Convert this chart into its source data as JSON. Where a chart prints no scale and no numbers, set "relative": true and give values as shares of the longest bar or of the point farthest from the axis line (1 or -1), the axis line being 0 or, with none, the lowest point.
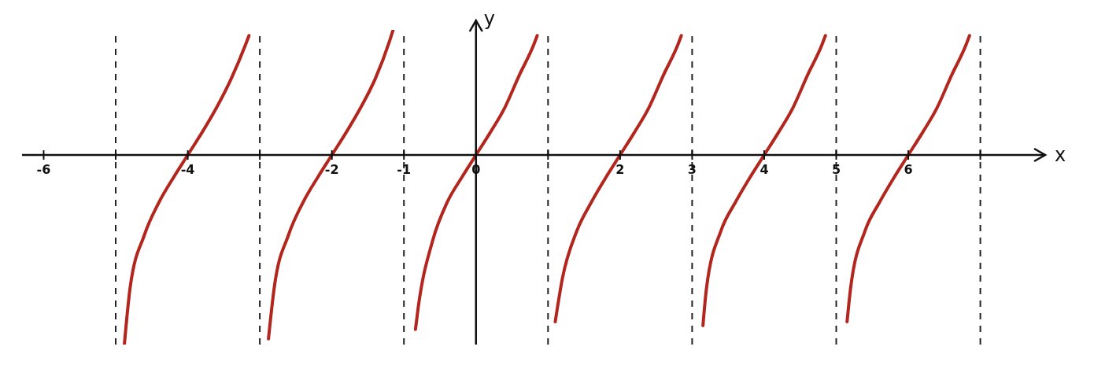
{
  "chart_data": {
    "type": "line",
    "relative": true,
    "xlabel": "x",
    "ylabel": "y",
    "xlim": [
      -6.3,
      7.9
    ],
    "xticks": [
      {
        "value": -6,
        "label": "-6"
      },
      {
        "value": -5,
        "label": null
      },
      {
        "value": -4,
        "label": "-4"
      },
      {
        "value": -3,
        "label": null
      },
      {
        "value": -2,
        "label": "-2"
      },
      {
        "value": -1,
        "label": "-1"
      },
      {
        "value": 0,
        "label": "0"
      },
      {
        "value": 1,
        "label": null
      },
      {
        "value": 2,
        "label": "2"
      },
      {
        "value": 3,
        "label": "3"
      },
      {
        "value": 4,
        "label": "4"
      },
      {
        "value": 5,
        "label": "5"
      },
      {
        "value": 6,
        "label": "6"
      },
      {
        "value": 7,
        "label": null
      }
    ],
    "grid": false,
    "marker": "none",
    "line_style": "solid",
    "series": [
      {
        "color": "#b3261e",
        "x": [
          -4.88,
          -4.8,
          -4.6,
          -4.4,
          -4.2,
          -4,
          -3.8,
          -3.6,
          -3.4,
          -3.2,
          -3.15
        ],
        "values": [
          -1,
          -0.7,
          -0.42,
          -0.25,
          -0.12,
          0,
          0.12,
          0.25,
          0.4,
          0.58,
          0.63
        ]
      },
      {
        "color": "#b3261e",
        "x": [
          -2.88,
          -2.8,
          -2.6,
          -2.4,
          -2.2,
          -2,
          -1.8,
          -1.6,
          -1.4,
          -1.2,
          -1.15
        ],
        "values": [
          -0.97,
          -0.7,
          -0.42,
          -0.25,
          -0.12,
          0,
          0.12,
          0.25,
          0.4,
          0.6,
          0.66
        ]
      },
      {
        "color": "#b3261e",
        "x": [
          -0.84,
          -0.8,
          -0.6,
          -0.4,
          -0.2,
          0,
          0.2,
          0.4,
          0.6,
          0.8,
          0.85
        ],
        "values": [
          -0.92,
          -0.8,
          -0.45,
          -0.25,
          -0.12,
          0,
          0.12,
          0.25,
          0.42,
          0.58,
          0.63
        ]
      },
      {
        "color": "#b3261e",
        "x": [
          1.1,
          1.2,
          1.4,
          1.6,
          1.8,
          2,
          2.2,
          2.4,
          2.6,
          2.8,
          2.85
        ],
        "values": [
          -0.88,
          -0.65,
          -0.4,
          -0.25,
          -0.12,
          0,
          0.12,
          0.25,
          0.42,
          0.58,
          0.63
        ]
      },
      {
        "color": "#b3261e",
        "x": [
          3.15,
          3.2,
          3.4,
          3.6,
          3.8,
          4,
          4.2,
          4.4,
          4.6,
          4.8,
          4.85
        ],
        "values": [
          -0.9,
          -0.7,
          -0.4,
          -0.25,
          -0.12,
          0,
          0.12,
          0.25,
          0.42,
          0.58,
          0.63
        ]
      },
      {
        "color": "#b3261e",
        "x": [
          5.15,
          5.2,
          5.4,
          5.6,
          5.8,
          6,
          6.2,
          6.4,
          6.6,
          6.8,
          6.85
        ],
        "values": [
          -0.88,
          -0.7,
          -0.4,
          -0.25,
          -0.12,
          0,
          0.12,
          0.25,
          0.42,
          0.58,
          0.63
        ]
      }
    ],
    "ref_lines": [
      {
        "axis": "x",
        "value": -5,
        "color": "#222222",
        "line_style": "dashed"
      },
      {
        "axis": "x",
        "value": -3,
        "color": "#222222",
        "line_style": "dashed"
      },
      {
        "axis": "x",
        "value": -1,
        "color": "#222222",
        "line_style": "dashed"
      },
      {
        "axis": "x",
        "value": 1,
        "color": "#222222",
        "line_style": "dashed"
      },
      {
        "axis": "x",
        "value": 3,
        "color": "#222222",
        "line_style": "dashed"
      },
      {
        "axis": "x",
        "value": 5,
        "color": "#222222",
        "line_style": "dashed"
      },
      {
        "axis": "x",
        "value": 7,
        "color": "#222222",
        "line_style": "dashed"
      }
    ]
  }
}
